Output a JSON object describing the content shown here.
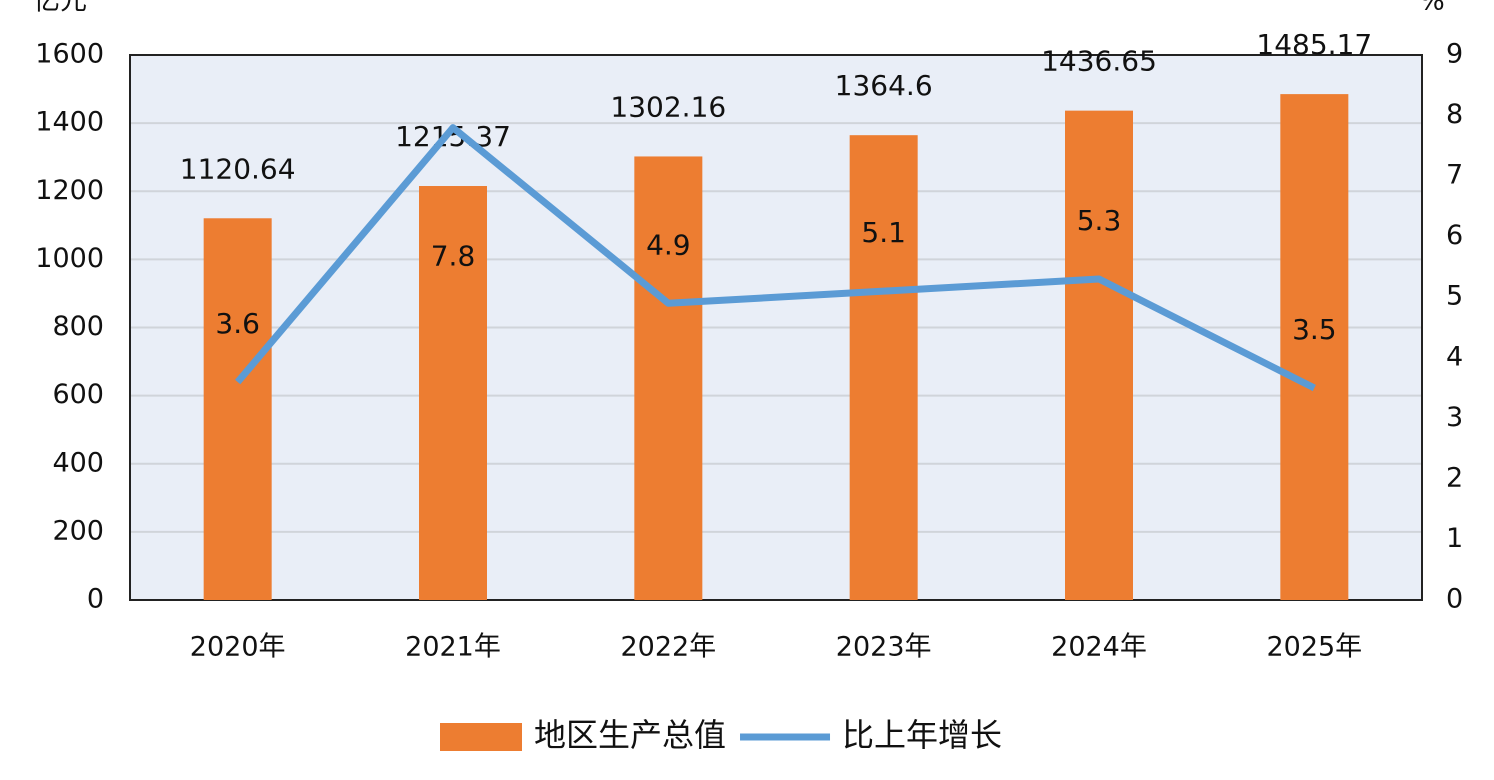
{
  "chart_data": {
    "type": "combo",
    "y_label": "亿元",
    "y2_label": "%",
    "categories": [
      "2020年",
      "2021年",
      "2022年",
      "2023年",
      "2024年",
      "2025年"
    ],
    "series": [
      {
        "name": "地区生产总值",
        "type": "bar",
        "color": "#ed7d31",
        "values": [
          1120.64,
          1215.37,
          1302.16,
          1364.6,
          1436.65,
          1485.17
        ]
      },
      {
        "name": "比上年增长",
        "type": "line",
        "axis": "y2",
        "color": "#5b9bd5",
        "values": [
          3.6,
          7.8,
          4.9,
          5.1,
          5.3,
          3.5
        ]
      }
    ],
    "ylim": [
      0,
      1600
    ],
    "yticks": [
      0,
      200,
      400,
      600,
      800,
      1000,
      1200,
      1400,
      1600
    ],
    "y2lim": [
      0,
      9
    ],
    "y2ticks": [
      0,
      1,
      2,
      3,
      4,
      5,
      6,
      7,
      8,
      9
    ],
    "grid": true,
    "legend": "bottom"
  }
}
